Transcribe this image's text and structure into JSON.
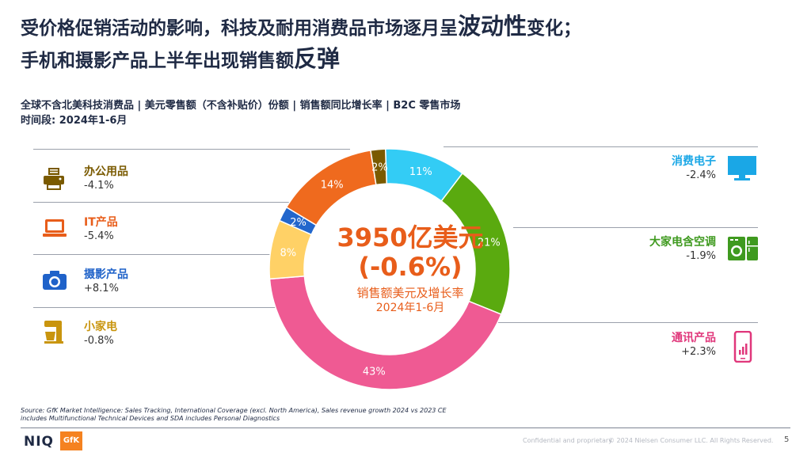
{
  "headline": {
    "line1_a": "受价格促销活动的影响，科技及耐用消费品市场逐月呈",
    "line1_em": "波动性",
    "line1_b": "变化；",
    "line2_a": "手机和摄影产品上半年出现销售额",
    "line2_em": "反弹"
  },
  "subtitle": {
    "line1": "全球不含北美科技消费品 | 美元零售额（不含补贴价）份额 | 销售额同比增长率 | B2C 零售市场",
    "line2": "时间段: 2024年1-6月"
  },
  "center": {
    "value": "3950亿美元",
    "growth": "(-0.6%)",
    "label1": "销售额美元及增长率",
    "label2": "2024年1-6月"
  },
  "categories_left": [
    {
      "name": "办公用品",
      "growth": "-4.1%",
      "color": "#7a5a00",
      "icon": "printer-icon"
    },
    {
      "name": "IT产品",
      "growth": "-5.4%",
      "color": "#e85d1a",
      "icon": "laptop-icon"
    },
    {
      "name": "摄影产品",
      "growth": "+8.1%",
      "color": "#1f62c9",
      "icon": "camera-icon"
    },
    {
      "name": "小家电",
      "growth": "-0.8%",
      "color": "#c9950e",
      "icon": "mixer-icon"
    }
  ],
  "categories_right": [
    {
      "name": "消费电子",
      "growth": "-2.4%",
      "color": "#1aa7e6",
      "icon": "tv-icon"
    },
    {
      "name": "大家电含空调",
      "growth": "-1.9%",
      "color": "#3f9a1f",
      "icon": "washer-fridge-icon"
    },
    {
      "name": "通讯产品",
      "growth": "+2.3%",
      "color": "#e0377b",
      "icon": "smartphone-icon"
    }
  ],
  "chart_data": {
    "type": "pie",
    "donut": true,
    "start_angle_deg": -2,
    "slices": [
      {
        "name": "消费电子",
        "value": 11,
        "label": "11%",
        "color": "#33ccf5"
      },
      {
        "name": "大家电含空调",
        "value": 21,
        "label": "21%",
        "color": "#5aaa0f"
      },
      {
        "name": "通讯产品",
        "value": 43,
        "label": "43%",
        "color": "#ef5a93"
      },
      {
        "name": "小家电",
        "value": 8,
        "label": "8%",
        "color": "#ffd166"
      },
      {
        "name": "摄影产品",
        "value": 2,
        "label": "2%",
        "color": "#2266cc"
      },
      {
        "name": "IT产品",
        "value": 14,
        "label": "14%",
        "color": "#ef6a1e"
      },
      {
        "name": "办公用品",
        "value": 2,
        "label": "2%",
        "color": "#7a5a00"
      }
    ]
  },
  "source": {
    "line1": "Source: GfK Market Intelligence: Sales Tracking, International Coverage (excl. North America), Sales revenue growth 2024 vs 2023 CE",
    "line2": "includes Multifunctional Technical Devices and SDA includes Personal Diagnostics"
  },
  "footer": {
    "niq": "NIQ",
    "gfk": "GfK",
    "confidential": "Confidential and proprietary",
    "copyright": "© 2024 Nielsen Consumer LLC. All Rights Reserved.",
    "page": "5"
  }
}
